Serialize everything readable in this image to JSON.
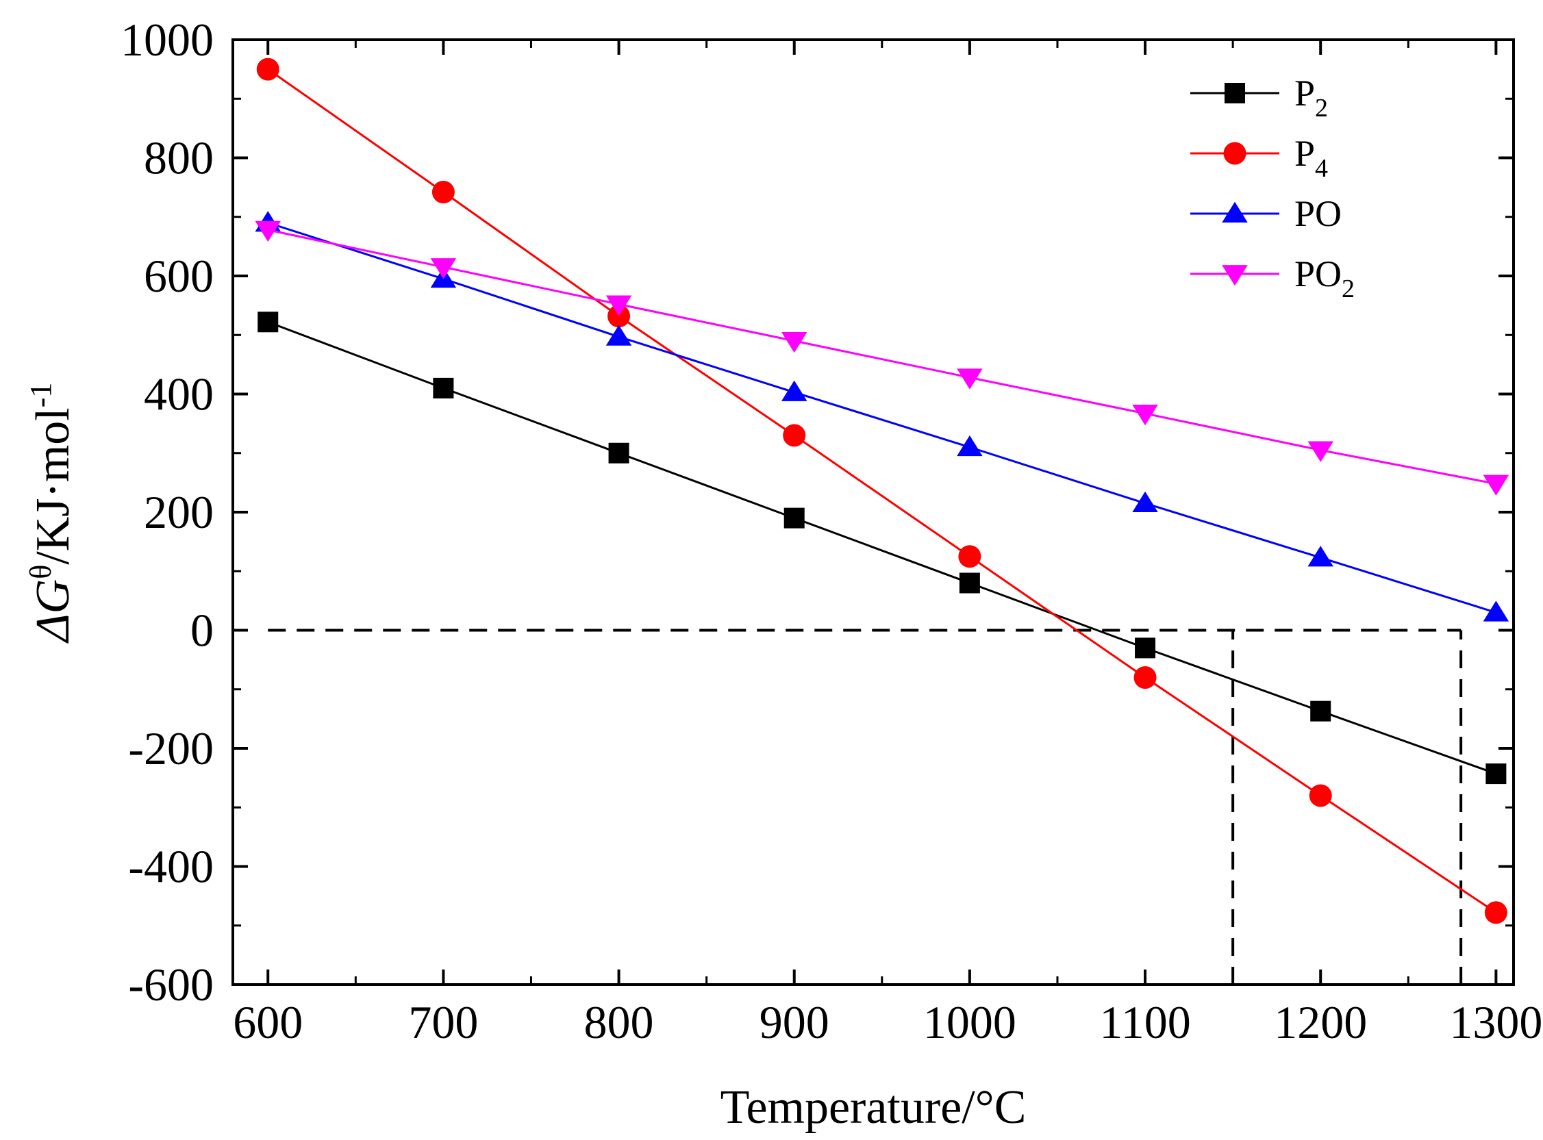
{
  "chart_data": {
    "type": "line",
    "xlabel": "Temperature/°C",
    "ylabel": {
      "prefix": "ΔG",
      "superscript": "θ",
      "unit": "/KJ·mol",
      "unit_superscript": "-1"
    },
    "xlim": [
      580,
      1310
    ],
    "ylim": [
      -600,
      1000
    ],
    "x_ticks": [
      "600",
      "700",
      "800",
      "900",
      "1000",
      "1100",
      "1200",
      "1300"
    ],
    "x_tick_values": [
      600,
      700,
      800,
      900,
      1000,
      1100,
      1200,
      1300
    ],
    "y_ticks": [
      "-600",
      "-400",
      "-200",
      "0",
      "200",
      "400",
      "600",
      "800",
      "1000"
    ],
    "y_tick_values": [
      -600,
      -400,
      -200,
      0,
      200,
      400,
      600,
      800,
      1000
    ],
    "x": [
      600,
      700,
      800,
      900,
      1000,
      1100,
      1200,
      1300
    ],
    "grid": false,
    "legend_position": "top-right",
    "series": [
      {
        "name": "P2",
        "label_main": "P",
        "label_sub": "2",
        "color": "#000000",
        "marker": "square",
        "values": [
          522,
          410,
          300,
          190,
          80,
          -30,
          -137,
          -243
        ]
      },
      {
        "name": "P4",
        "label_main": "P",
        "label_sub": "4",
        "color": "#ff0000",
        "marker": "circle",
        "values": [
          950,
          742,
          532,
          330,
          125,
          -80,
          -280,
          -478
        ]
      },
      {
        "name": "PO",
        "label_main": "PO",
        "label_sub": "",
        "color": "#0000ff",
        "marker": "triangle-up",
        "values": [
          690,
          595,
          497,
          403,
          310,
          215,
          123,
          30
        ]
      },
      {
        "name": "PO2",
        "label_main": "PO",
        "label_sub": "2",
        "color": "#ff00ff",
        "marker": "triangle-down",
        "values": [
          678,
          615,
          552,
          490,
          428,
          367,
          305,
          248
        ]
      }
    ],
    "reference_lines": [
      {
        "type": "horizontal",
        "y": 0,
        "x_from": 600,
        "x_to": 1280,
        "style": "dashed",
        "color": "#000000"
      },
      {
        "type": "vertical",
        "x": 1150,
        "y_from": -600,
        "y_to": 0,
        "style": "dashed",
        "color": "#000000"
      },
      {
        "type": "vertical",
        "x": 1280,
        "y_from": -600,
        "y_to": 0,
        "style": "dashed",
        "color": "#000000"
      }
    ]
  }
}
